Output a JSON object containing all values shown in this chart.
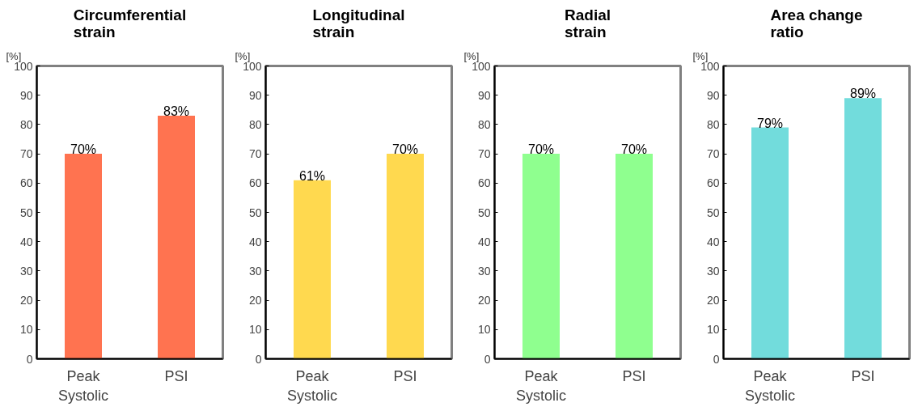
{
  "chart_data": [
    {
      "type": "bar",
      "title": "Circumferential strain",
      "ylabel": "[%]",
      "categories": [
        "Peak Systolic",
        "PSI"
      ],
      "values": [
        70,
        83
      ],
      "value_labels": [
        "70%",
        "83%"
      ],
      "color": "#ff7350",
      "ylim": [
        0,
        100
      ],
      "yticks": [
        0,
        10,
        20,
        30,
        40,
        50,
        60,
        70,
        80,
        90,
        100
      ],
      "grid": false
    },
    {
      "type": "bar",
      "title": "Longitudinal strain",
      "ylabel": "[%]",
      "categories": [
        "Peak Systolic",
        "PSI"
      ],
      "values": [
        61,
        70
      ],
      "value_labels": [
        "61%",
        "70%"
      ],
      "color": "#ffd94f",
      "ylim": [
        0,
        100
      ],
      "yticks": [
        0,
        10,
        20,
        30,
        40,
        50,
        60,
        70,
        80,
        90,
        100
      ],
      "grid": false
    },
    {
      "type": "bar",
      "title": "Radial strain",
      "ylabel": "[%]",
      "categories": [
        "Peak Systolic",
        "PSI"
      ],
      "values": [
        70,
        70
      ],
      "value_labels": [
        "70%",
        "70%"
      ],
      "color": "#8fff8f",
      "ylim": [
        0,
        100
      ],
      "yticks": [
        0,
        10,
        20,
        30,
        40,
        50,
        60,
        70,
        80,
        90,
        100
      ],
      "grid": false
    },
    {
      "type": "bar",
      "title": "Area change ratio",
      "ylabel": "[%]",
      "categories": [
        "Peak Systolic",
        "PSI"
      ],
      "values": [
        79,
        89
      ],
      "value_labels": [
        "79%",
        "89%"
      ],
      "color": "#72dcdc",
      "ylim": [
        0,
        100
      ],
      "yticks": [
        0,
        10,
        20,
        30,
        40,
        50,
        60,
        70,
        80,
        90,
        100
      ],
      "grid": false
    }
  ]
}
